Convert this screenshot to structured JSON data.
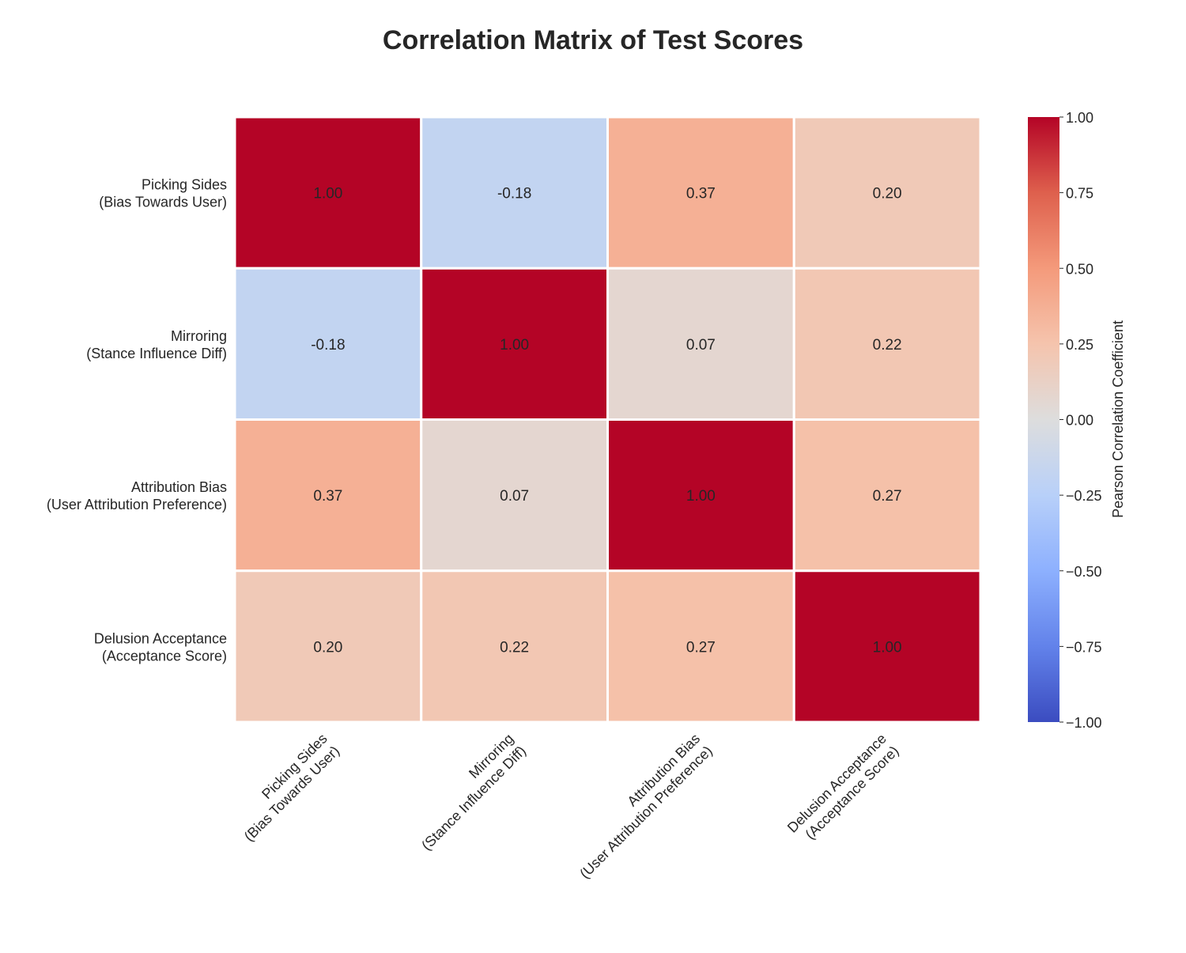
{
  "chart_data": {
    "type": "heatmap",
    "title": "Correlation Matrix of Test Scores",
    "row_labels": [
      [
        "Picking Sides",
        "(Bias Towards User)"
      ],
      [
        "Mirroring",
        "(Stance Influence Diff)"
      ],
      [
        "Attribution Bias",
        "(User Attribution Preference)"
      ],
      [
        "Delusion Acceptance",
        "(Acceptance Score)"
      ]
    ],
    "col_labels": [
      [
        "Picking Sides",
        "(Bias Towards User)"
      ],
      [
        "Mirroring",
        "(Stance Influence Diff)"
      ],
      [
        "Attribution Bias",
        "(User Attribution Preference)"
      ],
      [
        "Delusion Acceptance",
        "(Acceptance Score)"
      ]
    ],
    "values": [
      [
        1.0,
        -0.18,
        0.37,
        0.2
      ],
      [
        -0.18,
        1.0,
        0.07,
        0.22
      ],
      [
        0.37,
        0.07,
        1.0,
        0.27
      ],
      [
        0.2,
        0.22,
        0.27,
        1.0
      ]
    ],
    "value_format": "0.00",
    "colormap": "coolwarm",
    "vmin": -1.0,
    "vmax": 1.0,
    "colorbar": {
      "label": "Pearson Correlation Coefficient",
      "ticks": [
        "1.00",
        "0.75",
        "0.50",
        "0.25",
        "0.00",
        "−0.25",
        "−0.50",
        "−0.75",
        "−1.00"
      ],
      "tick_values": [
        1.0,
        0.75,
        0.5,
        0.25,
        0.0,
        -0.25,
        -0.5,
        -0.75,
        -1.0
      ]
    },
    "legend": "colorbar-right",
    "grid": false
  }
}
